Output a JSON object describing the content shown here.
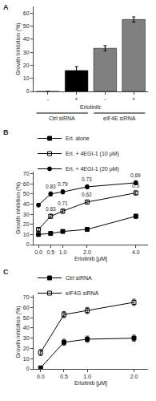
{
  "chart_data": [
    {
      "type": "bar",
      "title": "A",
      "categories": [
        "-",
        "+",
        "-",
        "+"
      ],
      "values": [
        0,
        16,
        33,
        55
      ],
      "errors": [
        0,
        3,
        2,
        2
      ],
      "colors": [
        "black",
        "black",
        "gray",
        "gray"
      ],
      "group_labels": [
        "Ctrl siRNA",
        "eIF4E siRNA"
      ],
      "annotations": [
        "Erlotinib:"
      ],
      "ylabel": "Growth Inhibition (%)",
      "ylim": [
        0,
        65
      ],
      "yticks": [
        0,
        10,
        20,
        30,
        40,
        50,
        60
      ],
      "grid": false
    },
    {
      "type": "line",
      "title": "B",
      "x": [
        0,
        0.5,
        1,
        2,
        4
      ],
      "series": [
        {
          "name": "Erl. alone",
          "color": "black",
          "marker": "square",
          "values": [
            10,
            11,
            13,
            15,
            28
          ],
          "errors": [
            1,
            1.5,
            1,
            1.5,
            2
          ]
        },
        {
          "name": "Erl. + 4EGI-1 (10 μM)",
          "color": "black",
          "marker": "square-open",
          "values": [
            15,
            28,
            33,
            42,
            51
          ],
          "errors": [
            1.5,
            2,
            2,
            2,
            2
          ],
          "ci": [
            null,
            0.83,
            0.71,
            0.62,
            0.5
          ]
        },
        {
          "name": "Erl. + 4EGI-1 (20 μM)",
          "color": "black",
          "marker": "circle",
          "values": [
            39,
            50,
            52,
            57,
            61
          ],
          "errors": [
            1.5,
            2,
            2,
            2,
            2
          ],
          "ci": [
            null,
            0.83,
            0.79,
            0.73,
            0.69
          ]
        }
      ],
      "xlabel": "Erlotinib [μM]",
      "ylabel": "Growth inhibition (%)",
      "xlim": [
        -0.2,
        4.5
      ],
      "xticks": [
        {
          "value": 0,
          "label": "0.0"
        },
        {
          "value": 0.5,
          "label": "0.5"
        },
        {
          "value": 1,
          "label": "1.0"
        },
        {
          "value": 2,
          "label": "2.0"
        },
        {
          "value": 4,
          "label": "4.0"
        }
      ],
      "ylim": [
        0,
        72
      ],
      "yticks": [
        0,
        10,
        20,
        30,
        40,
        50,
        60,
        70
      ],
      "legend": "upper left",
      "grid": false
    },
    {
      "type": "line",
      "title": "C",
      "x": [
        0,
        0.5,
        1,
        2
      ],
      "series": [
        {
          "name": "Ctrl siRNA",
          "color": "black",
          "marker": "square",
          "values": [
            1,
            26,
            29,
            30
          ],
          "errors": [
            0.5,
            3,
            3,
            3
          ]
        },
        {
          "name": "eIF4G siRNA",
          "color": "black",
          "marker": "square-open",
          "values": [
            16,
            53,
            57,
            65
          ],
          "errors": [
            3,
            3,
            3,
            3
          ]
        }
      ],
      "xlabel": "Erlotinib [μM]",
      "ylabel": "Growth inhibition (%)",
      "xlim": [
        -0.15,
        2.3
      ],
      "xticks": [
        {
          "value": 0,
          "label": "0.0"
        },
        {
          "value": 0.5,
          "label": "0.5"
        },
        {
          "value": 1,
          "label": "1.0"
        },
        {
          "value": 2,
          "label": "2.0"
        }
      ],
      "ylim": [
        0,
        72
      ],
      "yticks": [
        0,
        10,
        20,
        30,
        40,
        50,
        60,
        70
      ],
      "legend": "upper left",
      "grid": false
    }
  ]
}
